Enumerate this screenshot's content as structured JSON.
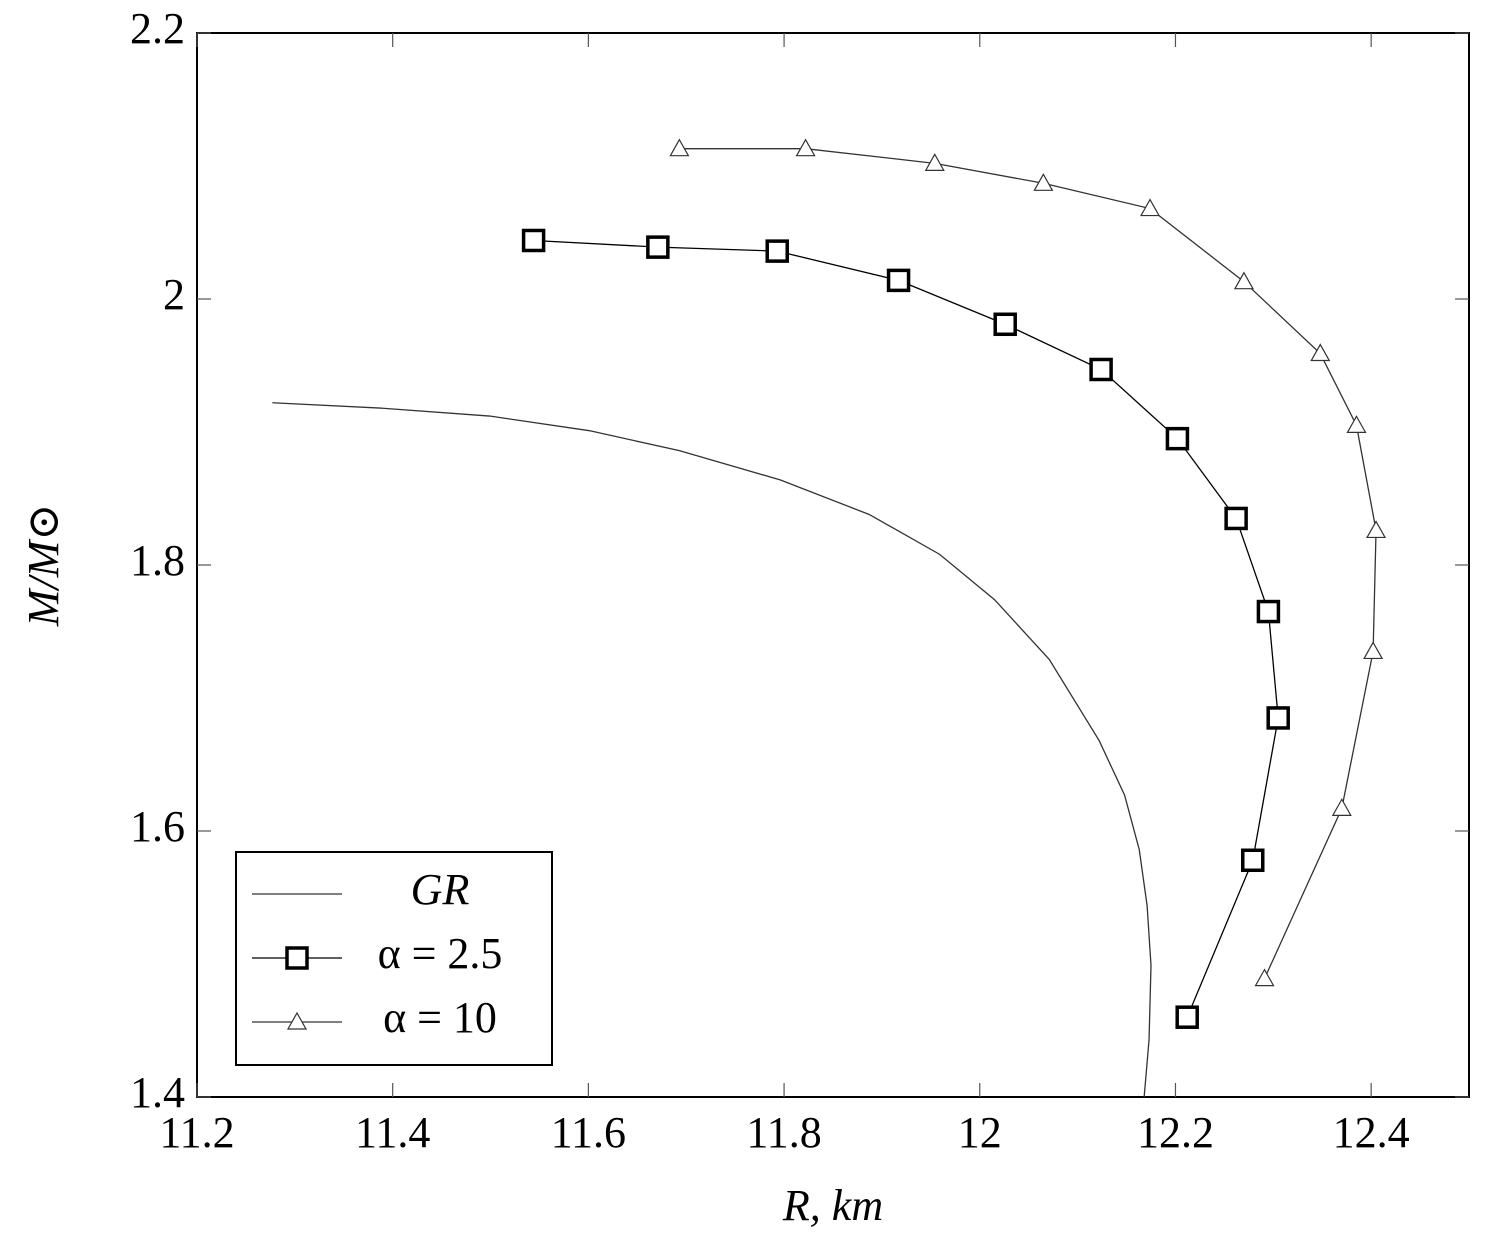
{
  "chart_data": {
    "type": "line",
    "xlabel": "R, km",
    "ylabel": "M/M⊙",
    "xlim": [
      11.2,
      12.5
    ],
    "ylim": [
      1.4,
      2.2
    ],
    "xticks": [
      11.2,
      11.4,
      11.6,
      11.8,
      12,
      12.2,
      12.4
    ],
    "yticks": [
      1.4,
      1.6,
      1.8,
      2,
      2.2
    ],
    "grid": false,
    "legend": "lower left",
    "series": [
      {
        "name": "GR",
        "color": "#333333",
        "marker": "none",
        "x": [
          11.277,
          11.387,
          11.499,
          11.601,
          11.693,
          11.796,
          11.887,
          11.959,
          12.015,
          12.071,
          12.122,
          12.148,
          12.163,
          12.171,
          12.175,
          12.173,
          12.168
        ],
        "values": [
          1.922,
          1.918,
          1.912,
          1.901,
          1.886,
          1.864,
          1.838,
          1.808,
          1.774,
          1.729,
          1.668,
          1.627,
          1.586,
          1.544,
          1.499,
          1.443,
          1.4
        ]
      },
      {
        "name": "α = 2.5",
        "color": "#000000",
        "marker": "square",
        "x": [
          11.544,
          11.671,
          11.793,
          11.917,
          12.026,
          12.124,
          12.202,
          12.262,
          12.295,
          12.305,
          12.279,
          12.212
        ],
        "values": [
          2.044,
          2.039,
          2.036,
          2.014,
          1.981,
          1.947,
          1.895,
          1.835,
          1.765,
          1.685,
          1.578,
          1.46
        ]
      },
      {
        "name": "α = 10",
        "color": "#333333",
        "marker": "triangle",
        "x": [
          11.693,
          11.822,
          11.954,
          12.065,
          12.174,
          12.27,
          12.348,
          12.385,
          12.405,
          12.402,
          12.37,
          12.291
        ],
        "values": [
          2.113,
          2.113,
          2.102,
          2.087,
          2.068,
          2.013,
          1.959,
          1.905,
          1.826,
          1.735,
          1.617,
          1.489
        ]
      }
    ]
  }
}
